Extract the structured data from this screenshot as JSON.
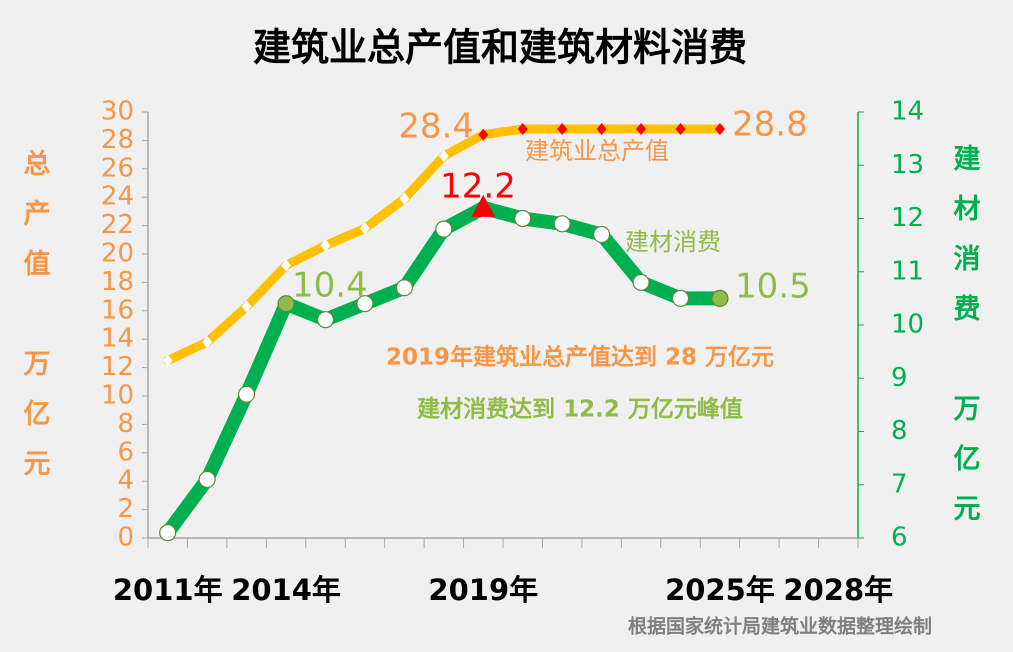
{
  "chart_data": {
    "type": "line",
    "title": "建筑业总产值和建筑材料消费",
    "categories": [
      "2011年",
      null,
      null,
      "2014年",
      null,
      null,
      null,
      null,
      "2019年",
      null,
      null,
      null,
      null,
      null,
      "2025年",
      null,
      null,
      "2028年"
    ],
    "series": [
      {
        "name": "建筑业总产值",
        "color": "#ffc000",
        "axis": "y",
        "values": [
          12.5,
          13.8,
          16.3,
          19.2,
          20.6,
          21.8,
          23.9,
          26.9,
          28.4,
          28.8,
          28.8,
          28.8,
          28.8,
          28.8,
          28.8,
          null,
          null,
          null
        ],
        "marker_colors": [
          "#ffffff",
          "#ffffff",
          "#ffffff",
          "#ffffff",
          "#ffffff",
          "#ffffff",
          "#ffffff",
          "#ffffff",
          "#ff0000",
          "#ff0000",
          "#ff0000",
          "#ff0000",
          "#ff0000",
          "#ff0000",
          "#ff0000",
          null,
          null,
          null
        ]
      },
      {
        "name": "建材消费",
        "color": "#00b050",
        "axis": "y2",
        "values": [
          6.1,
          7.1,
          8.7,
          10.4,
          10.1,
          10.4,
          10.7,
          11.8,
          12.2,
          12.0,
          11.9,
          11.7,
          10.8,
          10.5,
          10.5,
          null,
          null,
          null
        ],
        "marker_colors": [
          "#ffffff",
          "#ffffff",
          "#ffffff",
          "#8fbc48",
          "#ffffff",
          "#ffffff",
          "#ffffff",
          "#ffffff",
          "#ff0000",
          "#ffffff",
          "#ffffff",
          "#ffffff",
          "#ffffff",
          "#ffffff",
          "#8fbc48",
          null,
          null,
          null
        ]
      }
    ],
    "ylabel": "总产值 万亿元",
    "y2label": "建材消费 万亿元",
    "ylim": [
      0,
      30
    ],
    "yticks": [
      0,
      2,
      4,
      6,
      8,
      10,
      12,
      14,
      16,
      18,
      20,
      22,
      24,
      26,
      28,
      30
    ],
    "y2lim": [
      6,
      14
    ],
    "y2ticks": [
      6,
      7,
      8,
      9,
      10,
      11,
      12,
      13,
      14
    ],
    "annotations": [
      "2019年建筑业总产值达到 28 万亿元",
      "建材消费达到 12.2  万亿元峰值"
    ],
    "source": "根据国家统计局建筑业数据整理绘制"
  }
}
